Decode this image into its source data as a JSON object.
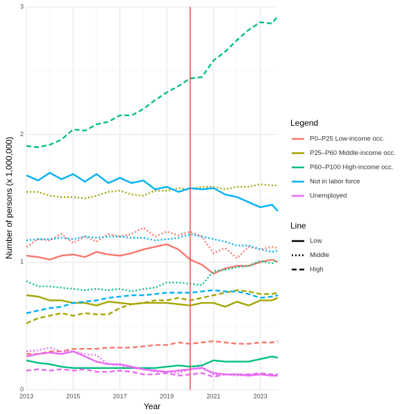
{
  "chart_data": {
    "type": "line",
    "x_label": "Year",
    "y_label": "Number of persons (x 1,000,000)",
    "x": [
      2013,
      2013.5,
      2014,
      2014.5,
      2015,
      2015.5,
      2016,
      2016.5,
      2017,
      2017.5,
      2018,
      2018.5,
      2019,
      2019.5,
      2020,
      2020.5,
      2021,
      2021.5,
      2022,
      2022.5,
      2023,
      2023.5,
      2023.75
    ],
    "xlim": [
      2013,
      2023.75
    ],
    "xticks": [
      2013,
      2015,
      2017,
      2019,
      2021,
      2023
    ],
    "ylim": [
      0,
      3
    ],
    "yticks": [
      0,
      1,
      2,
      3
    ],
    "grid": true,
    "vline": {
      "value": 2020,
      "color": "#d9534f"
    },
    "legend": {
      "title": "Legend",
      "entries": [
        {
          "name": "P0–P25 Low-income occ.",
          "color": "#f8766d"
        },
        {
          "name": "P25–P60 Middle-income occ.",
          "color": "#a3a500"
        },
        {
          "name": "P60–P100 High-income occ.",
          "color": "#00bf7d"
        },
        {
          "name": "Not in labor force",
          "color": "#00b0f6"
        },
        {
          "name": "Unemployed",
          "color": "#e76bf3"
        }
      ]
    },
    "linetype_legend": {
      "title": "Line",
      "entries": [
        {
          "name": "Low",
          "dash": "none"
        },
        {
          "name": "Middle",
          "dash": "2,3"
        },
        {
          "name": "High",
          "dash": "7,4"
        }
      ]
    },
    "series": [
      {
        "name": "P0–P25 Low-income occ.",
        "line": "Low",
        "values": [
          1.05,
          1.04,
          1.02,
          1.05,
          1.06,
          1.04,
          1.08,
          1.06,
          1.05,
          1.07,
          1.1,
          1.12,
          1.14,
          1.1,
          1.02,
          0.98,
          0.91,
          0.95,
          0.97,
          0.97,
          1.0,
          1.02,
          1.0
        ]
      },
      {
        "name": "P0–P25 Low-income occ.",
        "line": "Middle",
        "values": [
          1.12,
          1.18,
          1.17,
          1.22,
          1.15,
          1.2,
          1.16,
          1.22,
          1.2,
          1.22,
          1.27,
          1.2,
          1.24,
          1.21,
          1.24,
          1.2,
          1.07,
          1.11,
          1.03,
          1.12,
          1.1,
          1.12,
          1.11
        ]
      },
      {
        "name": "P0–P25 Low-income occ.",
        "line": "High",
        "values": [
          0.28,
          0.28,
          0.3,
          0.3,
          0.32,
          0.32,
          0.32,
          0.33,
          0.33,
          0.33,
          0.34,
          0.35,
          0.35,
          0.37,
          0.36,
          0.37,
          0.38,
          0.37,
          0.36,
          0.36,
          0.37,
          0.37,
          0.38
        ]
      },
      {
        "name": "P25–P60 Middle-income occ.",
        "line": "Low",
        "values": [
          0.74,
          0.73,
          0.7,
          0.7,
          0.68,
          0.68,
          0.66,
          0.69,
          0.68,
          0.67,
          0.68,
          0.68,
          0.68,
          0.67,
          0.66,
          0.68,
          0.68,
          0.65,
          0.69,
          0.66,
          0.7,
          0.7,
          0.72
        ]
      },
      {
        "name": "P25–P60 Middle-income occ.",
        "line": "Middle",
        "values": [
          1.55,
          1.55,
          1.52,
          1.51,
          1.51,
          1.5,
          1.52,
          1.55,
          1.56,
          1.53,
          1.52,
          1.56,
          1.56,
          1.58,
          1.57,
          1.59,
          1.59,
          1.57,
          1.59,
          1.59,
          1.61,
          1.6,
          1.6
        ]
      },
      {
        "name": "P25–P60 Middle-income occ.",
        "line": "High",
        "values": [
          0.52,
          0.56,
          0.58,
          0.6,
          0.58,
          0.6,
          0.59,
          0.59,
          0.64,
          0.67,
          0.68,
          0.7,
          0.7,
          0.72,
          0.7,
          0.72,
          0.74,
          0.76,
          0.78,
          0.77,
          0.75,
          0.75,
          0.76
        ]
      },
      {
        "name": "P60–P100 High-income occ.",
        "line": "Low",
        "values": [
          0.23,
          0.21,
          0.2,
          0.18,
          0.17,
          0.17,
          0.17,
          0.17,
          0.17,
          0.17,
          0.17,
          0.17,
          0.18,
          0.19,
          0.18,
          0.19,
          0.23,
          0.22,
          0.22,
          0.22,
          0.24,
          0.26,
          0.25
        ]
      },
      {
        "name": "P60–P100 High-income occ.",
        "line": "Middle",
        "values": [
          0.85,
          0.81,
          0.81,
          0.8,
          0.79,
          0.78,
          0.79,
          0.78,
          0.79,
          0.77,
          0.79,
          0.8,
          0.84,
          0.84,
          0.83,
          0.82,
          0.93,
          0.94,
          0.96,
          0.97,
          1.01,
          0.99,
          1.02
        ]
      },
      {
        "name": "P60–P100 High-income occ.",
        "line": "High",
        "values": [
          1.91,
          1.9,
          1.92,
          1.96,
          2.04,
          2.03,
          2.08,
          2.1,
          2.15,
          2.15,
          2.2,
          2.27,
          2.33,
          2.38,
          2.44,
          2.45,
          2.58,
          2.65,
          2.74,
          2.82,
          2.88,
          2.87,
          2.93
        ]
      },
      {
        "name": "Not in labor force",
        "line": "Low",
        "values": [
          1.68,
          1.64,
          1.7,
          1.65,
          1.69,
          1.63,
          1.69,
          1.62,
          1.66,
          1.62,
          1.64,
          1.57,
          1.59,
          1.55,
          1.58,
          1.57,
          1.58,
          1.53,
          1.51,
          1.47,
          1.43,
          1.45,
          1.4
        ]
      },
      {
        "name": "Not in labor force",
        "line": "Middle",
        "values": [
          1.17,
          1.18,
          1.18,
          1.19,
          1.18,
          1.2,
          1.19,
          1.2,
          1.2,
          1.19,
          1.19,
          1.17,
          1.18,
          1.19,
          1.22,
          1.2,
          1.18,
          1.16,
          1.13,
          1.13,
          1.1,
          1.08,
          1.09
        ]
      },
      {
        "name": "Not in labor force",
        "line": "High",
        "values": [
          0.6,
          0.62,
          0.64,
          0.65,
          0.68,
          0.69,
          0.7,
          0.72,
          0.73,
          0.74,
          0.74,
          0.75,
          0.76,
          0.76,
          0.76,
          0.77,
          0.78,
          0.77,
          0.77,
          0.75,
          0.72,
          0.73,
          0.74
        ]
      },
      {
        "name": "Unemployed",
        "line": "Low",
        "values": [
          0.26,
          0.28,
          0.29,
          0.28,
          0.3,
          0.26,
          0.22,
          0.2,
          0.2,
          0.18,
          0.16,
          0.15,
          0.14,
          0.15,
          0.16,
          0.17,
          0.13,
          0.12,
          0.12,
          0.11,
          0.12,
          0.11,
          0.11
        ]
      },
      {
        "name": "Unemployed",
        "line": "Middle",
        "values": [
          0.3,
          0.31,
          0.33,
          0.3,
          0.3,
          0.28,
          0.27,
          0.2,
          0.19,
          0.17,
          0.16,
          0.14,
          0.14,
          0.13,
          0.16,
          0.18,
          0.12,
          0.12,
          0.11,
          0.12,
          0.12,
          0.12,
          0.11
        ]
      },
      {
        "name": "Unemployed",
        "line": "High",
        "values": [
          0.15,
          0.16,
          0.15,
          0.16,
          0.15,
          0.16,
          0.14,
          0.14,
          0.15,
          0.14,
          0.12,
          0.12,
          0.13,
          0.11,
          0.12,
          0.13,
          0.1,
          0.12,
          0.12,
          0.12,
          0.13,
          0.12,
          0.12
        ]
      }
    ]
  }
}
